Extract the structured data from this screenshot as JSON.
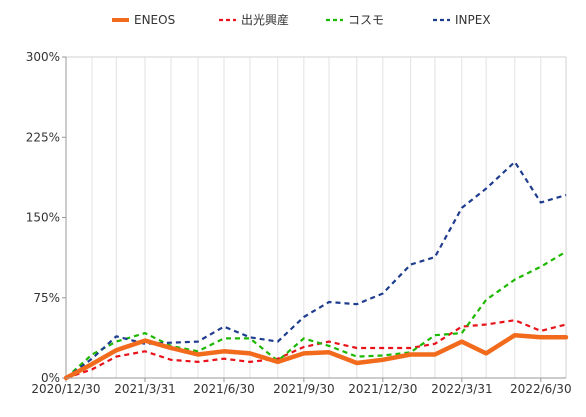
{
  "chart_data": {
    "type": "line",
    "title": "",
    "xlabel": "",
    "ylabel": "",
    "ylim": [
      0,
      300
    ],
    "yticks": [
      0,
      75,
      150,
      225,
      300
    ],
    "ytick_labels": [
      "0%",
      "75%",
      "150%",
      "225%",
      "300%"
    ],
    "grid": "vertical",
    "legend_position": "top",
    "x_dates": [
      "2020/12/30",
      "2021/1/29",
      "2021/2/26",
      "2021/3/31",
      "2021/4/30",
      "2021/5/31",
      "2021/6/30",
      "2021/7/30",
      "2021/8/31",
      "2021/9/30",
      "2021/10/29",
      "2021/11/30",
      "2021/12/30",
      "2022/1/31",
      "2022/2/28",
      "2022/3/31",
      "2022/4/28",
      "2022/5/31",
      "2022/6/30",
      "2022/7/29"
    ],
    "x_tick_labels": [
      "2020/12/30",
      "2021/3/31",
      "2021/6/30",
      "2021/9/30",
      "2021/12/30",
      "2022/3/31",
      "2022/6/30"
    ],
    "x_tick_dates": [
      "2020/12/30",
      "2021/3/31",
      "2021/6/30",
      "2021/9/30",
      "2021/12/30",
      "2022/3/31",
      "2022/6/30"
    ],
    "series": [
      {
        "name": "ENEOS",
        "color": "#f26b1d",
        "style": "solid",
        "values": [
          0,
          13,
          26,
          35,
          28,
          22,
          25,
          23,
          15,
          23,
          24,
          14,
          17,
          22,
          22,
          34,
          23,
          40,
          38,
          38
        ]
      },
      {
        "name": "出光興産",
        "color": "#e8131a",
        "style": "dashed",
        "values": [
          0,
          8,
          20,
          25,
          17,
          15,
          18,
          15,
          18,
          29,
          34,
          28,
          28,
          28,
          32,
          48,
          50,
          54,
          44,
          50
        ]
      },
      {
        "name": "コスモ",
        "color": "#1db800",
        "style": "dashed",
        "values": [
          0,
          22,
          34,
          42,
          30,
          25,
          37,
          37,
          16,
          37,
          30,
          20,
          21,
          24,
          40,
          42,
          73,
          92,
          104,
          118
        ]
      },
      {
        "name": "INPEX",
        "color": "#1f3d8f",
        "style": "dashed",
        "values": [
          0,
          18,
          39,
          32,
          33,
          34,
          48,
          38,
          34,
          57,
          71,
          69,
          79,
          106,
          113,
          159,
          177,
          202,
          164,
          171
        ]
      }
    ]
  }
}
